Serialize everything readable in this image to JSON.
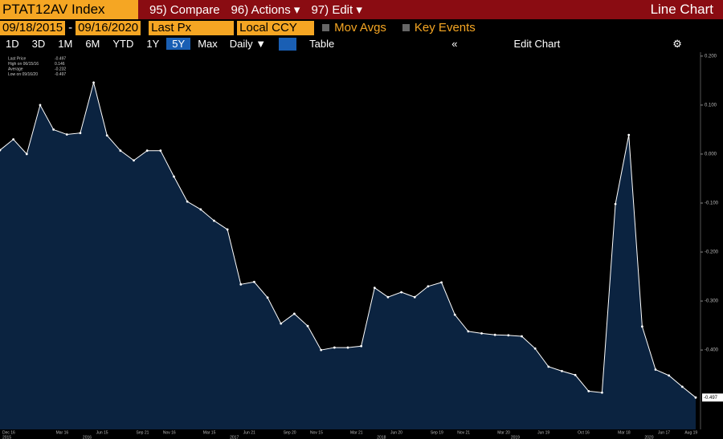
{
  "toolbar": {
    "ticker": "PTAT12AV Index",
    "compare": "95) Compare",
    "actions": "96) Actions",
    "edit": "97) Edit",
    "view": "Line Chart"
  },
  "controls": {
    "start": "09/18/2015",
    "end": "09/16/2020",
    "field": "Last Px",
    "currency": "Local CCY",
    "mov_avgs": "Mov Avgs",
    "key_events": "Key Events"
  },
  "periods": [
    "1D",
    "3D",
    "1M",
    "6M",
    "YTD",
    "1Y",
    "5Y",
    "Max"
  ],
  "selected_period": "5Y",
  "frequency": "Daily",
  "table": "Table",
  "edit_chart": "Edit Chart",
  "chart_data": {
    "type": "line",
    "legend": [
      {
        "label": "Last Price",
        "value": -0.497
      },
      {
        "label": "High on 06/15/16",
        "value": 0.146
      },
      {
        "label": "Average",
        "value": -0.232
      },
      {
        "label": "Low on 09/16/20",
        "value": -0.497
      }
    ],
    "categories": [
      "Dec 16",
      null,
      null,
      null,
      "Mar 16",
      null,
      null,
      "Jun 15",
      null,
      null,
      "Sep 21",
      null,
      "Nov 16",
      null,
      null,
      "Mar 15",
      null,
      null,
      "Jun 21",
      null,
      null,
      "Sep 20",
      null,
      "Nov 15",
      null,
      null,
      "Mar 21",
      null,
      null,
      "Jun 20",
      null,
      null,
      "Sep 19",
      null,
      "Nov 21",
      null,
      null,
      "Mar 20",
      null,
      null,
      "Jun 19",
      null,
      null,
      "Oct 16",
      null,
      null,
      "Mar 18",
      null,
      null,
      "Jun 17",
      null,
      "Aug 19",
      null
    ],
    "years": [
      "2015",
      null,
      null,
      null,
      null,
      null,
      "2016",
      null,
      null,
      null,
      null,
      null,
      null,
      null,
      null,
      null,
      null,
      "2017",
      null,
      null,
      null,
      null,
      null,
      null,
      null,
      null,
      null,
      null,
      "2018",
      null,
      null,
      null,
      null,
      null,
      null,
      null,
      null,
      null,
      "2019",
      null,
      null,
      null,
      null,
      null,
      null,
      null,
      null,
      null,
      "2020",
      null,
      null,
      null,
      null
    ],
    "series": [
      {
        "name": "Last Price",
        "color": "#ffffff",
        "fill": "#0b2340",
        "values": [
          0.008,
          0.03,
          0.0,
          0.1,
          0.05,
          0.04,
          0.043,
          0.146,
          0.038,
          0.007,
          -0.013,
          0.007,
          0.007,
          -0.046,
          -0.097,
          -0.113,
          -0.136,
          -0.154,
          -0.266,
          -0.261,
          -0.293,
          -0.346,
          -0.326,
          -0.351,
          -0.4,
          -0.395,
          -0.395,
          -0.392,
          -0.273,
          -0.292,
          -0.282,
          -0.292,
          -0.27,
          -0.262,
          -0.328,
          -0.362,
          -0.366,
          -0.369,
          -0.37,
          -0.372,
          -0.397,
          -0.434,
          -0.443,
          -0.451,
          -0.484,
          -0.487,
          -0.102,
          0.039,
          -0.352,
          -0.44,
          -0.452,
          -0.475,
          -0.497
        ]
      }
    ],
    "ylim": [
      -0.562,
      0.208
    ],
    "yticks": [
      {
        "value": 0.2,
        "label": "0.200"
      },
      {
        "value": 0.1,
        "label": "0.100"
      },
      {
        "value": 0,
        "label": "0.000"
      },
      {
        "value": -0.1,
        "label": "-0.100"
      },
      {
        "value": -0.2,
        "label": "-0.200"
      },
      {
        "value": -0.3,
        "label": "-0.300"
      },
      {
        "value": -0.4,
        "label": "-0.400"
      }
    ],
    "grid": false
  }
}
